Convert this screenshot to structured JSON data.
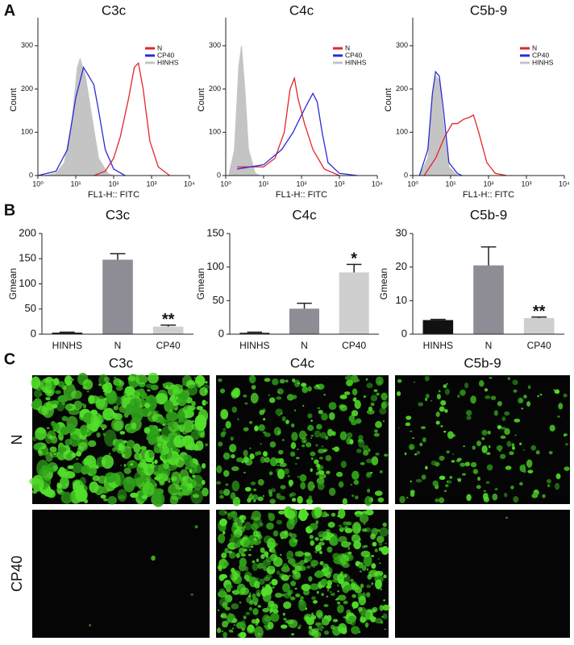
{
  "figure": {
    "panel_labels": [
      "A",
      "B",
      "C"
    ],
    "images": {
      "columns": [
        "C3c",
        "C4c",
        "C5b-9"
      ],
      "rows": [
        "N",
        "CP40"
      ]
    }
  },
  "chart_data": [
    {
      "type": "line",
      "title": "C3c",
      "x_label": "FL1-H:: FITC",
      "y_label": "Count",
      "xscale": "log",
      "xlim": [
        1,
        10000
      ],
      "xticks": [
        {
          "value": 1,
          "label": "10⁰"
        },
        {
          "value": 10,
          "label": "10¹"
        },
        {
          "value": 100,
          "label": "10²"
        },
        {
          "value": 1000,
          "label": "10³"
        },
        {
          "value": 10000,
          "label": "10⁴"
        }
      ],
      "ylim": [
        0,
        350
      ],
      "yticks": [
        0,
        100,
        200,
        300
      ],
      "legend": "upper right",
      "series": [
        {
          "name": "N",
          "color": "#e0262b",
          "x": [
            30,
            60,
            100,
            150,
            250,
            350,
            450,
            600,
            900,
            1500,
            3000
          ],
          "values": [
            0,
            10,
            40,
            90,
            180,
            250,
            260,
            200,
            80,
            20,
            0
          ]
        },
        {
          "name": "CP40",
          "color": "#2b2bd6",
          "x": [
            1,
            3,
            6,
            10,
            16,
            22,
            30,
            40,
            60,
            100,
            200
          ],
          "values": [
            0,
            10,
            60,
            180,
            250,
            230,
            210,
            150,
            60,
            15,
            0
          ]
        },
        {
          "name": "HINHS",
          "color": "#c4c4c4",
          "filled": true,
          "x": [
            1.5,
            3,
            5,
            8,
            11,
            13,
            18,
            25,
            40,
            70,
            100
          ],
          "values": [
            0,
            5,
            30,
            130,
            250,
            270,
            230,
            150,
            40,
            5,
            0
          ]
        }
      ]
    },
    {
      "type": "line",
      "title": "C4c",
      "x_label": "FL1-H:: FITC",
      "y_label": "Count",
      "xscale": "log",
      "xlim": [
        1,
        10000
      ],
      "xticks": [
        {
          "value": 1,
          "label": "10⁰"
        },
        {
          "value": 10,
          "label": "10¹"
        },
        {
          "value": 100,
          "label": "10²"
        },
        {
          "value": 1000,
          "label": "10³"
        },
        {
          "value": 10000,
          "label": "10⁴"
        }
      ],
      "ylim": [
        0,
        350
      ],
      "yticks": [
        0,
        100,
        200,
        300
      ],
      "legend": "upper right",
      "series": [
        {
          "name": "N",
          "color": "#e0262b",
          "x": [
            2,
            5,
            10,
            20,
            35,
            50,
            65,
            80,
            120,
            200,
            400,
            1000
          ],
          "values": [
            20,
            20,
            20,
            40,
            100,
            200,
            225,
            180,
            120,
            60,
            15,
            0
          ]
        },
        {
          "name": "CP40",
          "color": "#2b2bd6",
          "x": [
            2,
            10,
            30,
            60,
            100,
            150,
            200,
            260,
            350,
            500,
            1000,
            3000
          ],
          "values": [
            15,
            25,
            60,
            100,
            140,
            170,
            190,
            170,
            100,
            30,
            5,
            0
          ]
        },
        {
          "name": "HINHS",
          "color": "#c4c4c4",
          "filled": true,
          "x": [
            1.2,
            1.7,
            2.2,
            2.6,
            3.2,
            4,
            6,
            8
          ],
          "values": [
            0,
            60,
            250,
            300,
            200,
            60,
            5,
            0
          ]
        }
      ]
    },
    {
      "type": "line",
      "title": "C5b-9",
      "x_label": "FL1-H:: FITC",
      "y_label": "Count",
      "xscale": "log",
      "xlim": [
        1,
        10000
      ],
      "xticks": [
        {
          "value": 1,
          "label": "10⁰"
        },
        {
          "value": 10,
          "label": "10¹"
        },
        {
          "value": 100,
          "label": "10²"
        },
        {
          "value": 1000,
          "label": "10³"
        },
        {
          "value": 10000,
          "label": "10⁴"
        }
      ],
      "ylim": [
        0,
        350
      ],
      "yticks": [
        0,
        100,
        200,
        300
      ],
      "legend": "upper right",
      "series": [
        {
          "name": "N",
          "color": "#e0262b",
          "x": [
            2,
            4,
            7,
            11,
            15,
            22,
            32,
            40,
            55,
            90,
            150,
            300
          ],
          "values": [
            0,
            40,
            90,
            120,
            120,
            130,
            135,
            140,
            100,
            30,
            5,
            0
          ]
        },
        {
          "name": "CP40",
          "color": "#2b2bd6",
          "x": [
            1.5,
            2.5,
            3.3,
            4,
            5,
            6.5,
            9,
            15,
            20
          ],
          "values": [
            0,
            60,
            190,
            240,
            230,
            150,
            30,
            5,
            0
          ]
        },
        {
          "name": "HINHS",
          "color": "#c4c4c4",
          "filled": true,
          "x": [
            1.5,
            2.5,
            3.3,
            4,
            5,
            6.5,
            9,
            15
          ],
          "values": [
            0,
            40,
            180,
            230,
            220,
            120,
            20,
            0
          ]
        }
      ]
    },
    {
      "type": "bar",
      "title": "C3c",
      "y_label": "Gmean",
      "categories": [
        "HINHS",
        "N",
        "CP40"
      ],
      "values": [
        3,
        148,
        15
      ],
      "errors": [
        1,
        12,
        3
      ],
      "colors": [
        "#111111",
        "#8e8c95",
        "#cfcfcf"
      ],
      "ylim": [
        0,
        200
      ],
      "yticks": [
        0,
        50,
        100,
        150,
        200
      ],
      "annotation": "**"
    },
    {
      "type": "bar",
      "title": "C4c",
      "y_label": "Gmean",
      "categories": [
        "HINHS",
        "N",
        "CP40"
      ],
      "values": [
        2,
        38,
        92
      ],
      "errors": [
        1,
        8,
        12
      ],
      "colors": [
        "#111111",
        "#8e8c95",
        "#cfcfcf"
      ],
      "ylim": [
        0,
        150
      ],
      "yticks": [
        0,
        50,
        100,
        150
      ],
      "annotation": "*"
    },
    {
      "type": "bar",
      "title": "C5b-9",
      "y_label": "Gmean",
      "categories": [
        "HINHS",
        "N",
        "CP40"
      ],
      "values": [
        4.2,
        20.5,
        4.8
      ],
      "errors": [
        0.2,
        5.5,
        0.3
      ],
      "colors": [
        "#111111",
        "#8e8c95",
        "#cfcfcf"
      ],
      "ylim": [
        0,
        30
      ],
      "yticks": [
        0,
        10,
        20,
        30
      ],
      "annotation": "**"
    }
  ]
}
